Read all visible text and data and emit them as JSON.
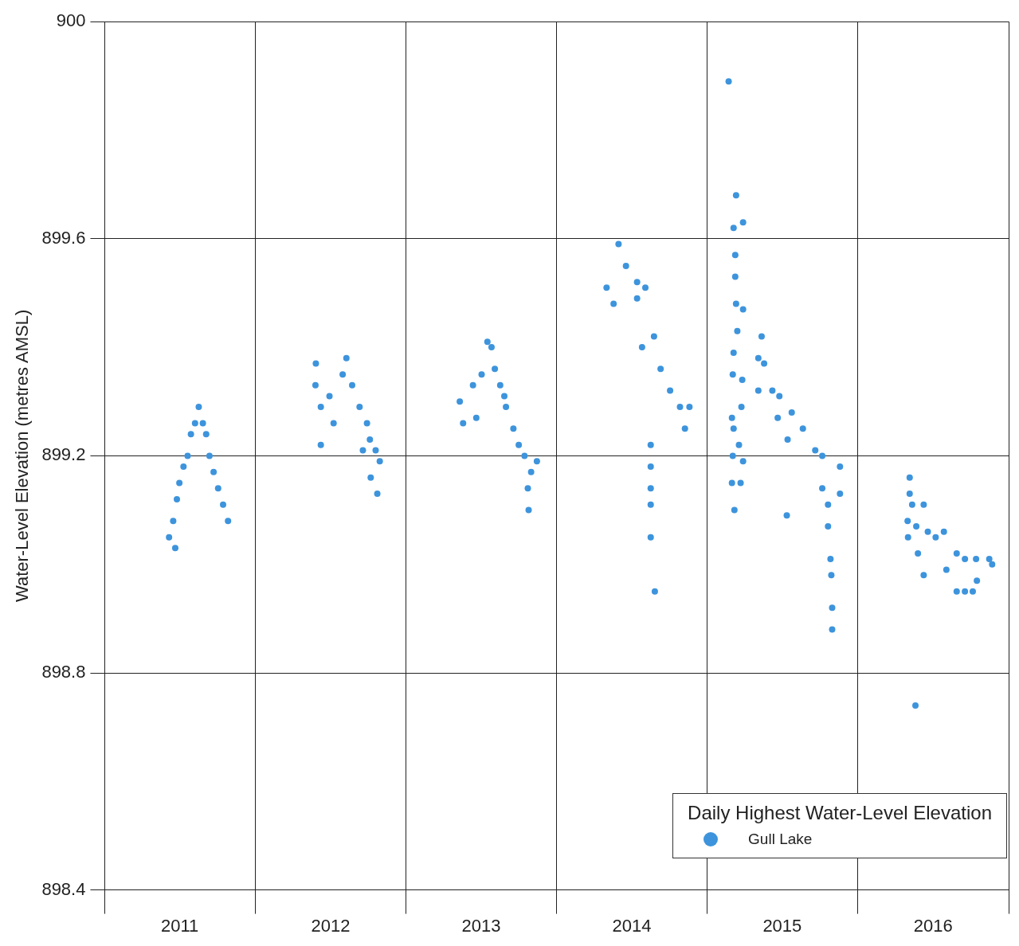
{
  "chart_data": {
    "type": "scatter",
    "ylabel": "Water-Level Elevation (metres AMSL)",
    "legend_title": "Daily Highest Water-Level Elevation",
    "legend": "bottom right",
    "grid": true,
    "marker": "circle",
    "xlim": [
      "2011-01-01",
      "2017-01-01"
    ],
    "xticks": [
      {
        "value": "2011-01-01",
        "label": null
      },
      {
        "value": "2011-07-02",
        "label": "2011"
      },
      {
        "value": "2012-01-01",
        "label": null
      },
      {
        "value": "2012-07-02",
        "label": "2012"
      },
      {
        "value": "2013-01-01",
        "label": null
      },
      {
        "value": "2013-07-02",
        "label": "2013"
      },
      {
        "value": "2014-01-01",
        "label": null
      },
      {
        "value": "2014-07-02",
        "label": "2014"
      },
      {
        "value": "2015-01-01",
        "label": null
      },
      {
        "value": "2015-07-02",
        "label": "2015"
      },
      {
        "value": "2016-01-01",
        "label": null
      },
      {
        "value": "2016-07-02",
        "label": "2016"
      },
      {
        "value": "2017-01-01",
        "label": null
      }
    ],
    "ylim": [
      898.4,
      900
    ],
    "yticks": [
      898.4,
      898.8,
      899.2,
      899.6,
      900
    ],
    "series": [
      {
        "name": "Gull Lake",
        "color": "#3d94dc",
        "x": [
          "2011-06-06",
          "2011-06-21",
          "2011-06-16",
          "2011-06-25",
          "2011-07-01",
          "2011-07-11",
          "2011-07-21",
          "2011-07-29",
          "2011-08-08",
          "2011-08-17",
          "2011-08-27",
          "2011-09-04",
          "2011-09-12",
          "2011-09-22",
          "2011-10-03",
          "2011-10-15",
          "2011-10-27",
          "2012-05-27",
          "2012-05-26",
          "2012-06-08",
          "2012-06-08",
          "2012-06-29",
          "2012-07-09",
          "2012-07-31",
          "2012-08-09",
          "2012-08-23",
          "2012-09-10",
          "2012-09-18",
          "2012-09-28",
          "2012-10-05",
          "2012-10-19",
          "2012-10-29",
          "2012-10-07",
          "2012-10-23",
          "2013-05-11",
          "2013-05-19",
          "2013-06-20",
          "2013-06-12",
          "2013-07-03",
          "2013-07-17",
          "2013-07-27",
          "2013-08-04",
          "2013-08-17",
          "2013-08-27",
          "2013-08-31",
          "2013-09-18",
          "2013-10-01",
          "2013-10-15",
          "2013-10-31",
          "2013-11-14",
          "2013-10-23",
          "2013-10-25",
          "2014-05-31",
          "2014-05-02",
          "2014-05-19",
          "2014-06-18",
          "2014-07-15",
          "2014-08-04",
          "2014-07-15",
          "2014-07-27",
          "2014-08-25",
          "2014-09-10",
          "2014-10-03",
          "2014-10-27",
          "2014-11-19",
          "2014-11-08",
          "2014-08-17",
          "2014-08-17",
          "2014-08-17",
          "2014-08-17",
          "2014-08-17",
          "2014-08-27",
          "2015-02-22",
          "2015-03-12",
          "2015-03-29",
          "2015-03-06",
          "2015-03-10",
          "2015-03-10",
          "2015-03-12",
          "2015-03-29",
          "2015-03-15",
          "2015-03-06",
          "2015-03-27",
          "2015-03-04",
          "2015-03-25",
          "2015-03-02",
          "2015-03-06",
          "2015-03-19",
          "2015-03-04",
          "2015-03-29",
          "2015-03-02",
          "2015-03-23",
          "2015-03-08",
          "2015-05-13",
          "2015-05-05",
          "2015-05-19",
          "2015-05-05",
          "2015-06-08",
          "2015-06-25",
          "2015-06-21",
          "2015-07-25",
          "2015-07-15",
          "2015-08-21",
          "2015-09-20",
          "2015-10-07",
          "2015-07-13",
          "2015-11-19",
          "2015-11-19",
          "2015-10-07",
          "2015-10-21",
          "2015-10-21",
          "2015-10-27",
          "2015-10-29",
          "2015-10-31",
          "2015-10-31",
          "2016-05-06",
          "2016-05-06",
          "2016-05-12",
          "2016-06-09",
          "2016-05-01",
          "2016-05-22",
          "2016-05-02",
          "2016-06-19",
          "2016-07-08",
          "2016-07-28",
          "2016-05-26",
          "2016-06-09",
          "2016-08-03",
          "2016-08-28",
          "2016-09-17",
          "2016-10-14",
          "2016-11-15",
          "2016-11-22",
          "2016-08-28",
          "2016-10-06",
          "2016-09-17",
          "2016-10-16",
          "2016-05-20"
        ],
        "values": [
          899.05,
          899.03,
          899.08,
          899.12,
          899.15,
          899.18,
          899.2,
          899.24,
          899.26,
          899.29,
          899.26,
          899.24,
          899.2,
          899.17,
          899.14,
          899.11,
          899.08,
          899.37,
          899.33,
          899.29,
          899.22,
          899.31,
          899.26,
          899.35,
          899.38,
          899.33,
          899.29,
          899.21,
          899.26,
          899.23,
          899.21,
          899.19,
          899.16,
          899.13,
          899.3,
          899.26,
          899.27,
          899.33,
          899.35,
          899.41,
          899.4,
          899.36,
          899.33,
          899.31,
          899.29,
          899.25,
          899.22,
          899.2,
          899.17,
          899.19,
          899.14,
          899.1,
          899.59,
          899.51,
          899.48,
          899.55,
          899.52,
          899.51,
          899.49,
          899.4,
          899.42,
          899.36,
          899.32,
          899.29,
          899.29,
          899.25,
          899.22,
          899.18,
          899.14,
          899.11,
          899.05,
          898.95,
          899.89,
          899.68,
          899.63,
          899.62,
          899.57,
          899.53,
          899.48,
          899.47,
          899.43,
          899.39,
          899.34,
          899.35,
          899.29,
          899.27,
          899.25,
          899.22,
          899.2,
          899.19,
          899.15,
          899.15,
          899.1,
          899.42,
          899.38,
          899.37,
          899.32,
          899.32,
          899.31,
          899.27,
          899.28,
          899.23,
          899.25,
          899.21,
          899.2,
          899.09,
          899.18,
          899.13,
          899.14,
          899.11,
          899.07,
          899.01,
          898.98,
          898.92,
          898.88,
          899.16,
          899.13,
          899.11,
          899.11,
          899.08,
          899.07,
          899.05,
          899.06,
          899.05,
          899.06,
          899.02,
          898.98,
          898.99,
          899.02,
          899.01,
          899.01,
          899.01,
          899,
          898.95,
          898.95,
          898.95,
          898.97,
          898.74
        ]
      }
    ]
  }
}
